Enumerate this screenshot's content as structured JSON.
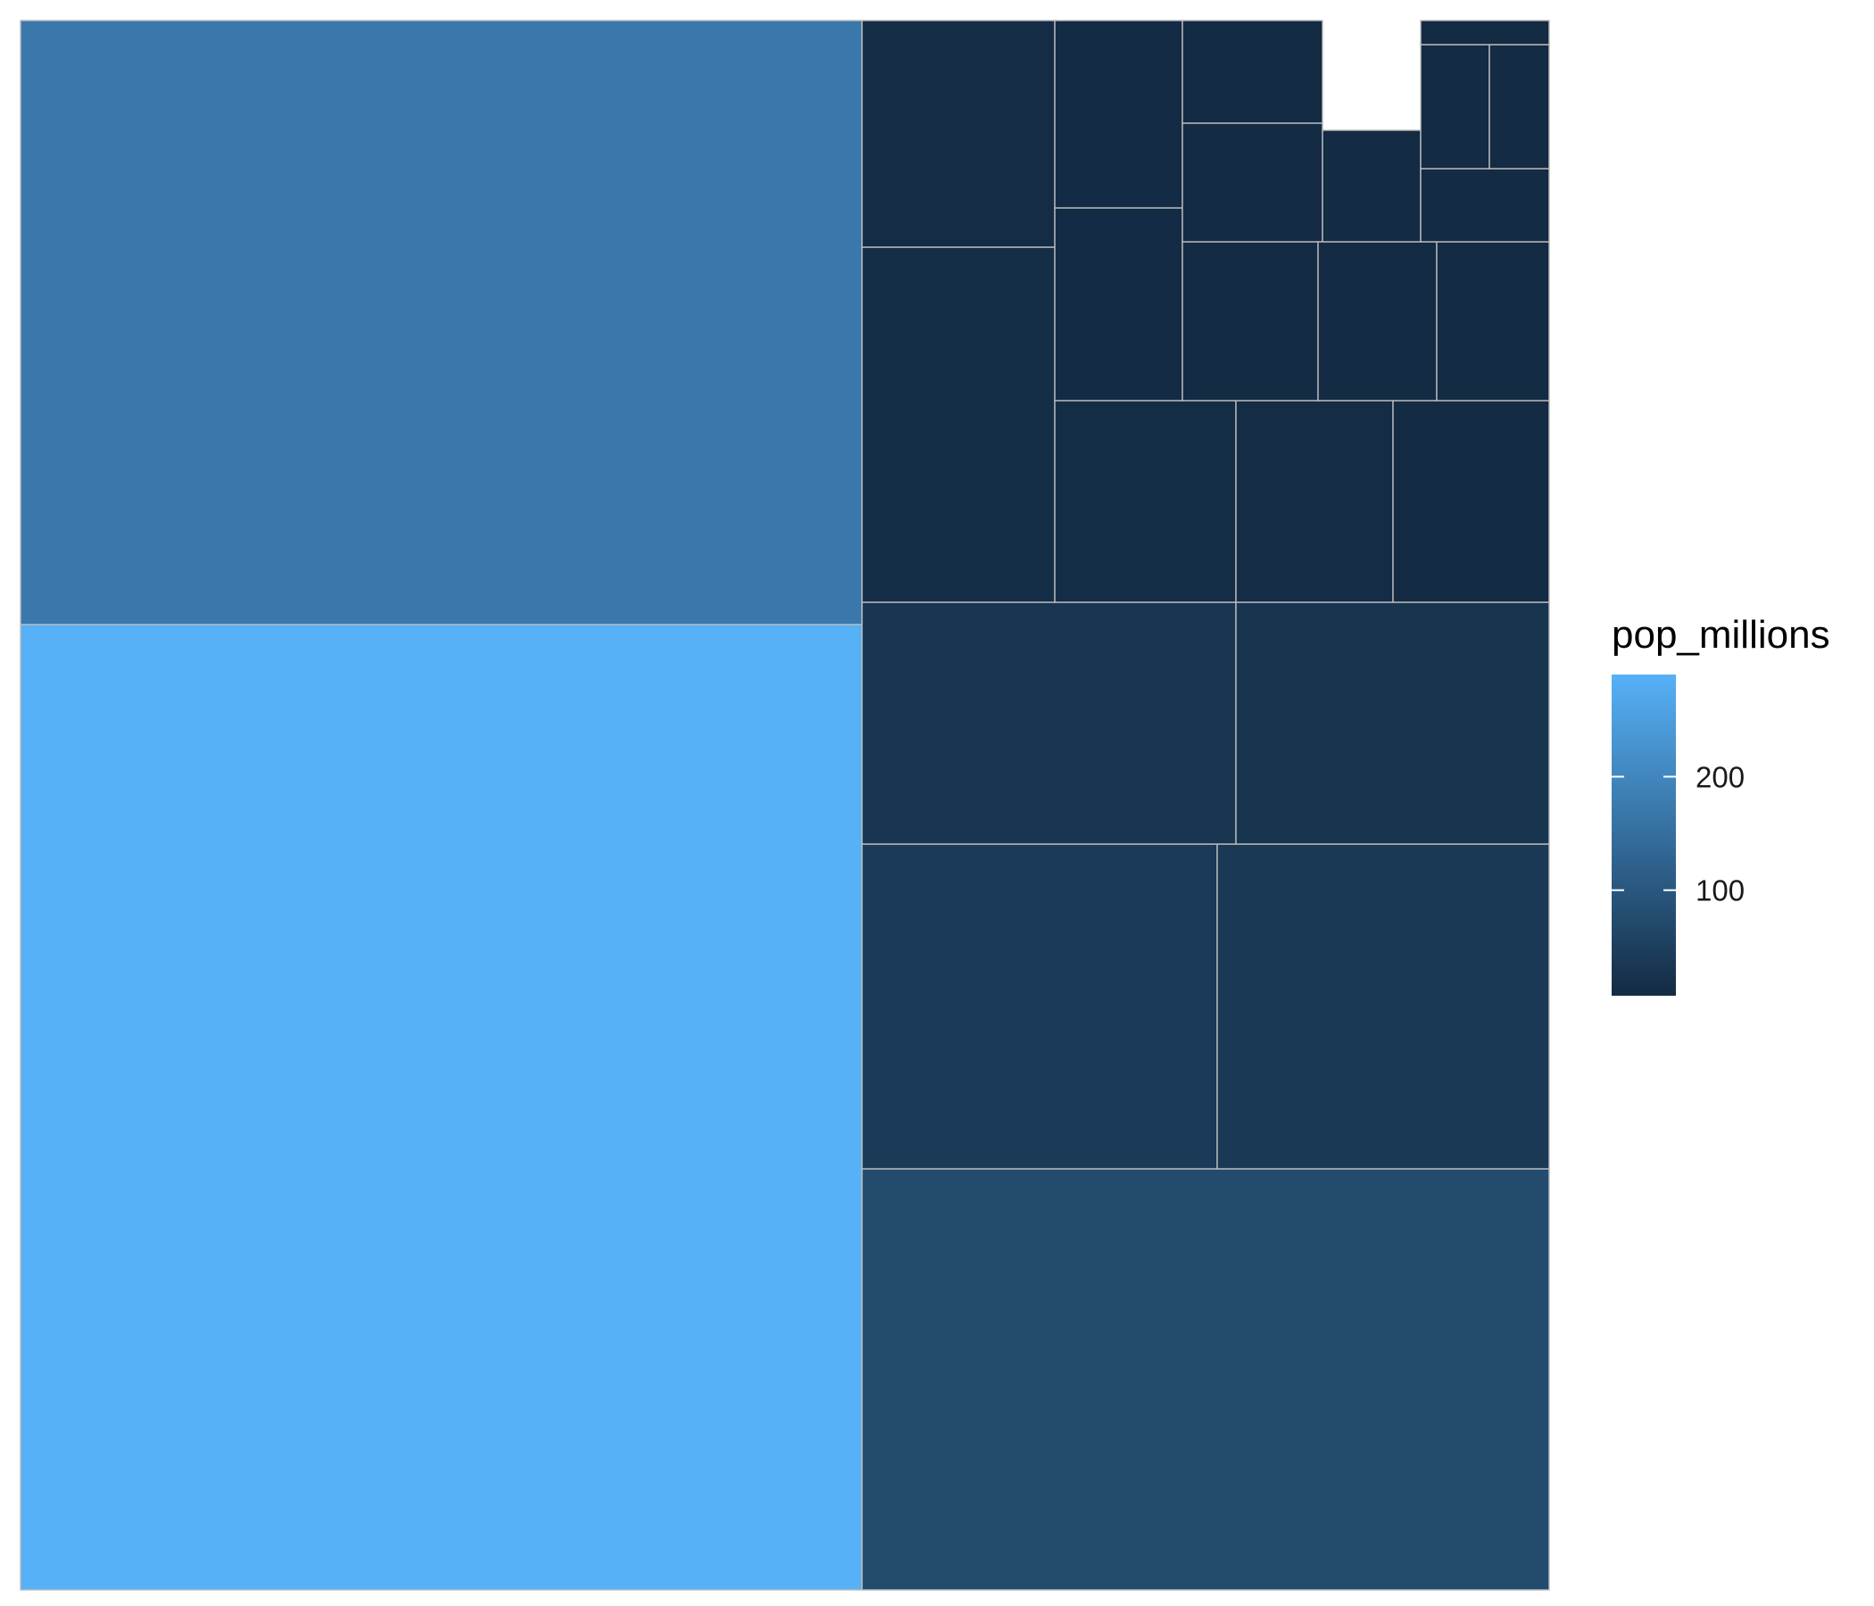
{
  "chart_data": {
    "type": "treemap",
    "fill_variable": "pop_millions",
    "color_scale": {
      "low_color": "#132b43",
      "high_color": "#56b1f7",
      "min": 7,
      "max": 290
    },
    "legend": {
      "title": "pop_millions",
      "position": "right",
      "breaks": [
        100,
        200
      ],
      "labels": [
        "100",
        "200"
      ]
    },
    "tiles": [
      {
        "value": 290
      },
      {
        "value": 170
      },
      {
        "value": 75
      },
      {
        "value": 38
      },
      {
        "value": 36
      },
      {
        "value": 30
      },
      {
        "value": 28
      },
      {
        "value": 14
      },
      {
        "value": 11
      },
      {
        "value": 10
      },
      {
        "value": 10
      },
      {
        "value": 9
      },
      {
        "value": 8
      },
      {
        "value": 8
      },
      {
        "value": 7
      },
      {
        "value": 7
      },
      {
        "value": 7
      },
      {
        "value": 6
      },
      {
        "value": 6
      },
      {
        "value": 5
      },
      {
        "value": 4
      },
      {
        "value": 3
      },
      {
        "value": 3
      },
      {
        "value": 1
      }
    ]
  }
}
